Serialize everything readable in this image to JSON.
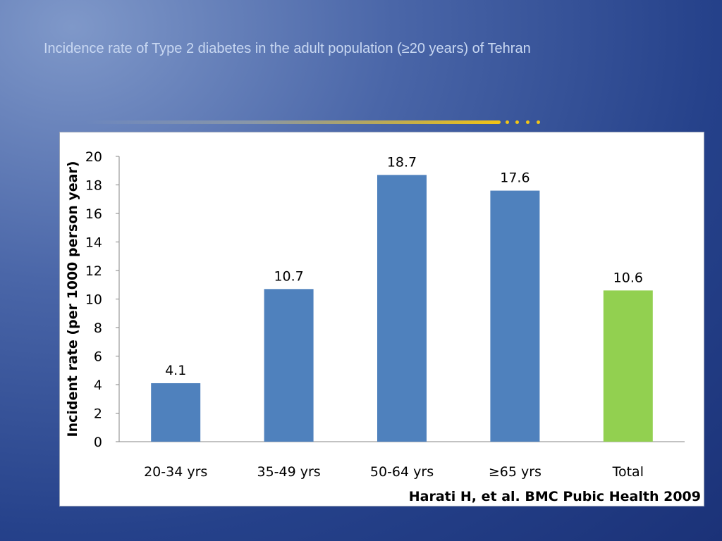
{
  "slide": {
    "title": "Incidence rate of Type 2 diabetes in the adult population (≥20 years) of Tehran",
    "source": "Harati H, et al. BMC Pubic Health 2009"
  },
  "colors": {
    "bar_default": "#4f81bd",
    "bar_highlight": "#92d050",
    "accent_line": "#f2c416"
  },
  "chart_data": {
    "type": "bar",
    "categories": [
      "20-34 yrs",
      "35-49 yrs",
      "50-64 yrs",
      "≥65 yrs",
      "Total"
    ],
    "values": [
      4.1,
      10.7,
      18.7,
      17.6,
      10.6
    ],
    "data_labels": [
      "4.1",
      "10.7",
      "18.7",
      "17.6",
      "10.6"
    ],
    "bar_colors": [
      "#4f81bd",
      "#4f81bd",
      "#4f81bd",
      "#4f81bd",
      "#92d050"
    ],
    "ylabel": "Incident rate (per 1000 person year)",
    "xlabel": "",
    "ylim": [
      0,
      20
    ],
    "yticks": [
      0,
      2,
      4,
      6,
      8,
      10,
      12,
      14,
      16,
      18,
      20
    ],
    "grid": false,
    "legend": "none"
  }
}
